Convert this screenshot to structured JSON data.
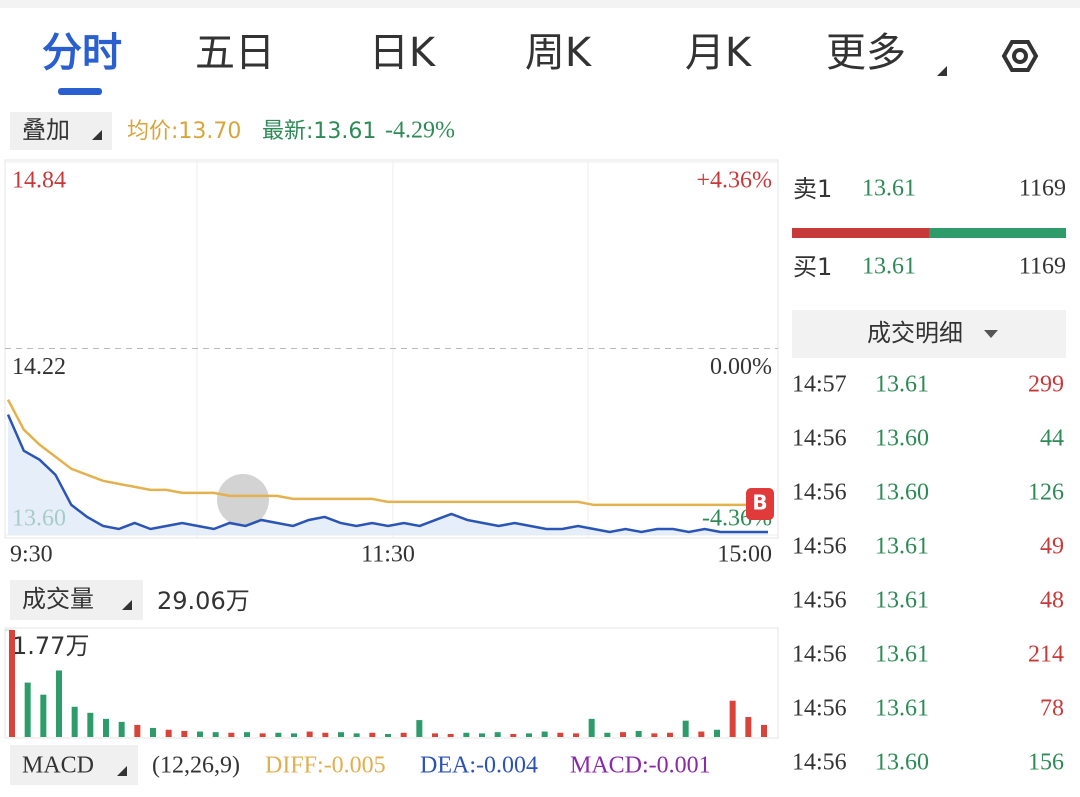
{
  "tabs": [
    "分时",
    "五日",
    "日K",
    "周K",
    "月K",
    "更多"
  ],
  "overlay": {
    "label": "叠加",
    "avg_label": "均价:13.70",
    "latest_label": "最新:13.61",
    "change": "-4.29%"
  },
  "chart_data": [
    {
      "type": "line",
      "ylim": [
        13.6,
        14.84
      ],
      "yticks": [
        {
          "value": 14.84,
          "label": "14.84"
        },
        14.22,
        {
          "value": 13.6,
          "label": "13.60"
        }
      ],
      "y2lim": [
        -4.36,
        4.36
      ],
      "y2ticks": [
        {
          "value": 4.36,
          "label": "+4.36%"
        },
        {
          "value": 0,
          "label": "0.00%"
        },
        {
          "value": -4.36,
          "label": "-4.36%"
        }
      ],
      "categories": [
        "9:30",
        null,
        null,
        null,
        null,
        null,
        null,
        null,
        null,
        null,
        null,
        null,
        null,
        null,
        null,
        null,
        null,
        null,
        null,
        null,
        null,
        null,
        null,
        null,
        "11:30",
        null,
        null,
        null,
        null,
        null,
        null,
        null,
        null,
        null,
        null,
        null,
        null,
        null,
        null,
        null,
        null,
        null,
        null,
        null,
        null,
        null,
        null,
        null,
        "15:00"
      ],
      "series": [
        {
          "color": "#2a54b5",
          "values": [
            14.0,
            13.88,
            13.85,
            13.8,
            13.7,
            13.66,
            13.63,
            13.62,
            13.64,
            13.62,
            13.63,
            13.64,
            13.63,
            13.62,
            13.64,
            13.63,
            13.65,
            13.64,
            13.63,
            13.65,
            13.66,
            13.64,
            13.63,
            13.64,
            13.63,
            13.64,
            13.63,
            13.65,
            13.67,
            13.65,
            13.64,
            13.63,
            13.64,
            13.63,
            13.62,
            13.62,
            13.63,
            13.62,
            13.61,
            13.62,
            13.61,
            13.62,
            13.62,
            13.61,
            13.62,
            13.61,
            13.61,
            13.61,
            13.61
          ]
        },
        {
          "color": "#e3b24f",
          "values": [
            14.05,
            13.95,
            13.9,
            13.86,
            13.82,
            13.8,
            13.78,
            13.77,
            13.76,
            13.75,
            13.75,
            13.74,
            13.74,
            13.74,
            13.73,
            13.73,
            13.73,
            13.73,
            13.72,
            13.72,
            13.72,
            13.72,
            13.72,
            13.72,
            13.71,
            13.71,
            13.71,
            13.71,
            13.71,
            13.71,
            13.71,
            13.71,
            13.71,
            13.71,
            13.71,
            13.71,
            13.71,
            13.7,
            13.7,
            13.7,
            13.7,
            13.7,
            13.7,
            13.7,
            13.7,
            13.7,
            13.7,
            13.7,
            13.7
          ]
        }
      ],
      "marker": "B"
    },
    {
      "type": "bar",
      "title": "成交量",
      "total": "29.06万",
      "ylim": [
        0,
        17700
      ],
      "yticks": [
        {
          "value": 17700,
          "label": "1.77万"
        }
      ],
      "up_color": "#d9433a",
      "down_color": "#2e9c6a",
      "values": [
        17700,
        9000,
        7000,
        11000,
        5000,
        4000,
        3000,
        2500,
        2000,
        1500,
        1200,
        1000,
        900,
        800,
        700,
        800,
        600,
        700,
        600,
        900,
        700,
        800,
        600,
        700,
        500,
        700,
        2800,
        600,
        500,
        700,
        600,
        800,
        500,
        600,
        900,
        700,
        600,
        3000,
        700,
        800,
        1000,
        600,
        700,
        2700,
        900,
        1200,
        6000,
        3300,
        2000
      ]
    }
  ],
  "macd": {
    "label": "MACD",
    "params": "(12,26,9)",
    "diff": "DIFF:-0.005",
    "dea": "DEA:-0.004",
    "macd": "MACD:-0.001"
  },
  "order_book": {
    "sell": {
      "label": "卖1",
      "price": "13.61",
      "volume": "1169"
    },
    "buy": {
      "label": "买1",
      "price": "13.61",
      "volume": "1169"
    }
  },
  "trades": {
    "title": "成交明细",
    "rows": [
      {
        "time": "14:57",
        "price": "13.61",
        "volume": "299",
        "color": "#c8393a"
      },
      {
        "time": "14:56",
        "price": "13.60",
        "volume": "44",
        "color": "#2e8b57"
      },
      {
        "time": "14:56",
        "price": "13.60",
        "volume": "126",
        "color": "#2e8b57"
      },
      {
        "time": "14:56",
        "price": "13.61",
        "volume": "49",
        "color": "#c8393a"
      },
      {
        "time": "14:56",
        "price": "13.61",
        "volume": "48",
        "color": "#c8393a"
      },
      {
        "time": "14:56",
        "price": "13.61",
        "volume": "214",
        "color": "#c8393a"
      },
      {
        "time": "14:56",
        "price": "13.61",
        "volume": "78",
        "color": "#c8393a"
      },
      {
        "time": "14:56",
        "price": "13.60",
        "volume": "156",
        "color": "#2e8b57"
      }
    ]
  }
}
